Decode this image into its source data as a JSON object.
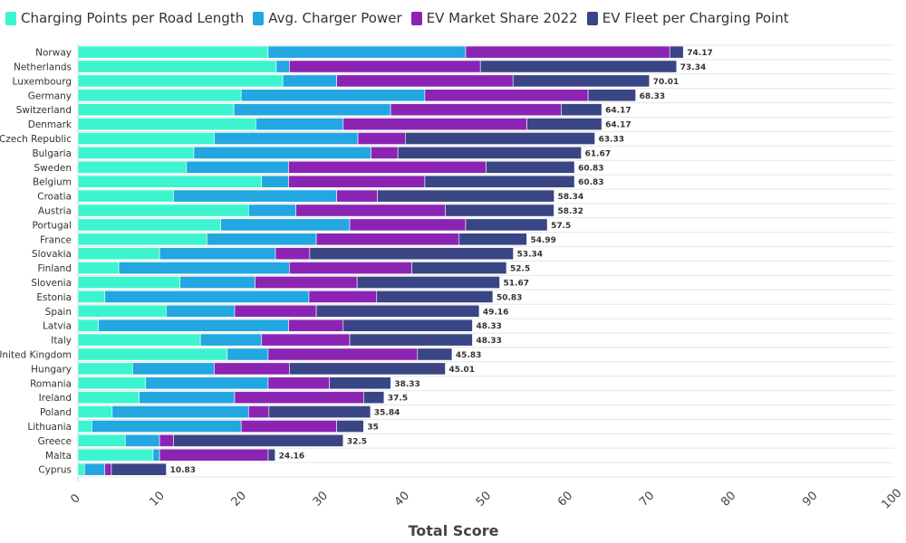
{
  "chart_data": {
    "type": "bar",
    "orientation": "horizontal",
    "stacked": true,
    "xlabel": "Total Score",
    "xlim": [
      0,
      100
    ],
    "xticks": [
      0,
      10,
      20,
      30,
      40,
      50,
      60,
      70,
      80,
      90,
      100
    ],
    "grid": true,
    "legend": "top-left",
    "categories": [
      "Norway",
      "Netherlands",
      "Luxembourg",
      "Germany",
      "Switzerland",
      "Denmark",
      "Czech Republic",
      "Bulgaria",
      "Sweden",
      "Belgium",
      "Croatia",
      "Austria",
      "Portugal",
      "France",
      "Slovakia",
      "Finland",
      "Slovenia",
      "Estonia",
      "Spain",
      "Latvia",
      "Italy",
      "United Kingdom",
      "Hungary",
      "Romania",
      "Ireland",
      "Poland",
      "Lithuania",
      "Greece",
      "Malta",
      "Cyprus"
    ],
    "series": [
      {
        "name": "Charging Points per Road Length",
        "color": "#3cf5cf",
        "values": [
          23.3,
          24.3,
          25.1,
          20.0,
          19.1,
          21.8,
          16.7,
          14.2,
          13.3,
          22.5,
          11.7,
          20.9,
          17.5,
          15.8,
          10.0,
          5.0,
          12.5,
          3.3,
          10.8,
          2.5,
          15.0,
          18.3,
          6.7,
          8.3,
          7.5,
          4.2,
          1.7,
          5.8,
          9.2,
          0.8
        ]
      },
      {
        "name": "Avg. Charger Power",
        "color": "#22a7e0",
        "values": [
          24.2,
          1.6,
          6.6,
          22.5,
          19.2,
          10.7,
          17.6,
          21.7,
          12.5,
          3.3,
          20.0,
          5.8,
          15.8,
          13.4,
          14.2,
          20.9,
          9.2,
          25.0,
          8.4,
          23.3,
          7.5,
          5.0,
          10.0,
          15.0,
          11.7,
          16.7,
          18.3,
          4.2,
          0.8,
          2.5
        ]
      },
      {
        "name": "EV Market Share 2022",
        "color": "#8b24b3",
        "values": [
          25.0,
          23.4,
          21.6,
          20.0,
          20.9,
          22.5,
          5.8,
          3.3,
          24.2,
          16.7,
          5.0,
          18.3,
          14.2,
          17.5,
          4.2,
          15.0,
          12.5,
          8.3,
          10.0,
          6.7,
          10.8,
          18.3,
          9.2,
          7.5,
          15.8,
          2.5,
          11.7,
          1.7,
          13.3,
          0.8
        ]
      },
      {
        "name": "EV Fleet per Charging Point",
        "color": "#3a4585",
        "values": [
          1.67,
          24.04,
          16.71,
          5.83,
          4.97,
          9.17,
          23.23,
          22.47,
          10.83,
          18.33,
          21.64,
          13.32,
          10.0,
          8.29,
          24.94,
          11.6,
          17.47,
          14.23,
          19.96,
          15.83,
          15.03,
          4.23,
          19.11,
          7.53,
          2.5,
          12.44,
          3.3,
          20.8,
          0.86,
          6.73
        ]
      }
    ],
    "totals": [
      "74.17",
      "73.34",
      "70.01",
      "68.33",
      "64.17",
      "64.17",
      "63.33",
      "61.67",
      "60.83",
      "60.83",
      "58.34",
      "58.32",
      "57.5",
      "54.99",
      "53.34",
      "52.5",
      "51.67",
      "50.83",
      "49.16",
      "48.33",
      "48.33",
      "45.83",
      "45.01",
      "38.33",
      "37.5",
      "35.84",
      "35",
      "32.5",
      "24.16",
      "10.83"
    ]
  }
}
